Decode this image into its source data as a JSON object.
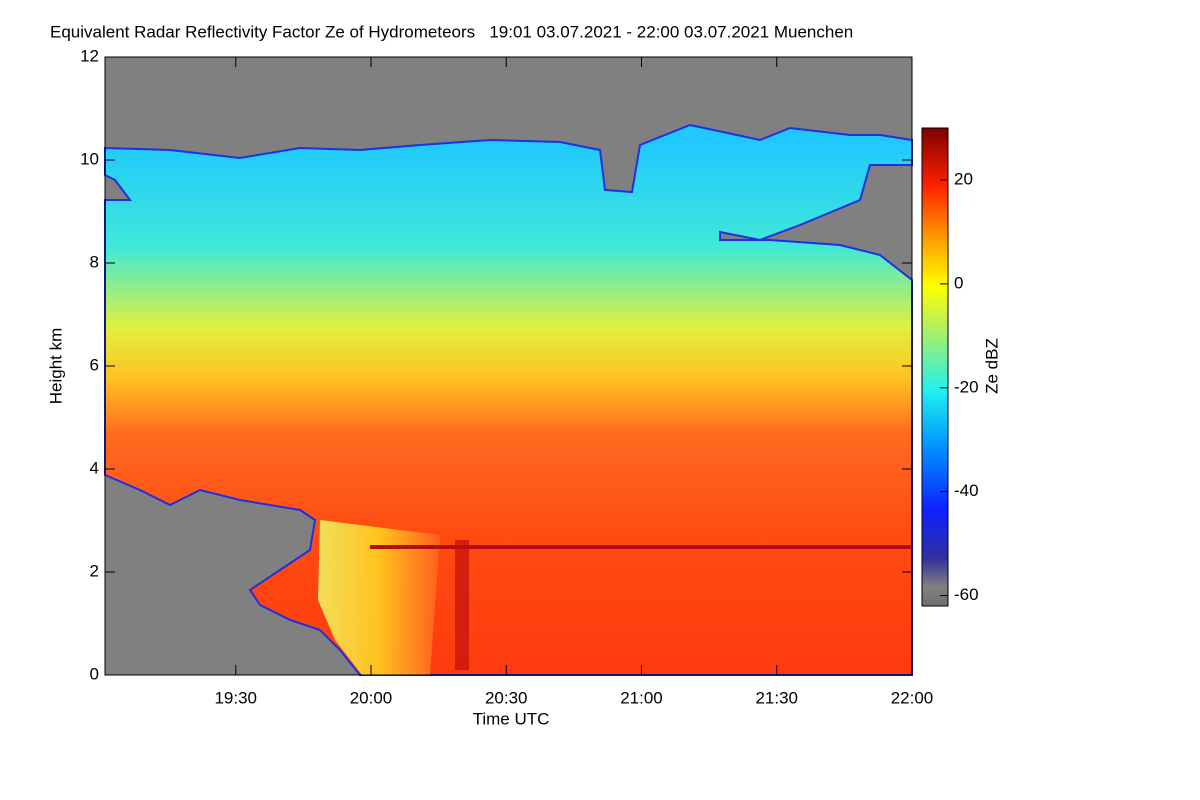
{
  "chart_data": {
    "type": "heatmap",
    "title": "Equivalent Radar Reflectivity Factor Ze of Hydrometeors   19:01 03.07.2021 - 22:00 03.07.2021 Muenchen",
    "x_label": "Time UTC",
    "y_label": "Height km",
    "colorbar_label": "Ze dBZ",
    "xlim": [
      19.0167,
      22
    ],
    "xticks": [
      {
        "value": 19.5,
        "label": "19:30"
      },
      {
        "value": 20,
        "label": "20:00"
      },
      {
        "value": 20.5,
        "label": "20:30"
      },
      {
        "value": 21,
        "label": "21:00"
      },
      {
        "value": 21.5,
        "label": "21:30"
      },
      {
        "value": 22,
        "label": "22:00"
      }
    ],
    "ylim": [
      0,
      12
    ],
    "yticks": [
      0,
      2,
      4,
      6,
      8,
      10,
      12
    ],
    "zlim": [
      -62,
      30
    ],
    "zticks": [
      -60,
      -40,
      -20,
      0,
      20
    ]
  }
}
